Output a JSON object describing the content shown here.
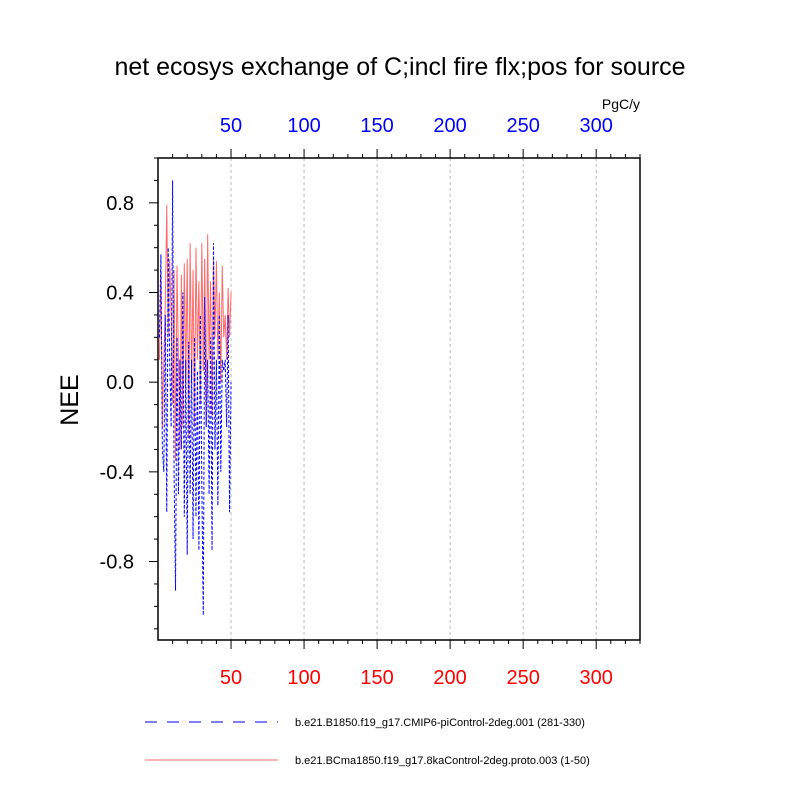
{
  "chart_data": {
    "type": "line",
    "title": "net ecosys exchange of C;incl fire flx;pos for source",
    "units": "PgC/y",
    "ylabel": "NEE",
    "xlabel": "",
    "xlim": [
      0,
      330
    ],
    "ylim": [
      -1.15,
      1.0
    ],
    "x_ticks": [
      50,
      100,
      150,
      200,
      250,
      300
    ],
    "y_ticks": [
      0.8,
      0.4,
      0.0,
      -0.4,
      -0.8
    ],
    "y_tick_labels": [
      "0.8",
      "0.4",
      "0.0",
      "-0.4",
      "-0.8"
    ],
    "grid": "vertical dashed at major x ticks",
    "legend_position": "bottom",
    "series": [
      {
        "name": "b.e21.B1850.f19_g17.CMIP6-piControl-2deg.001 (281-330)",
        "color": "#0000ff",
        "style": "dashed",
        "x": [
          1,
          2,
          3,
          4,
          5,
          6,
          7,
          8,
          9,
          10,
          11,
          12,
          13,
          14,
          15,
          16,
          17,
          18,
          19,
          20,
          21,
          22,
          23,
          24,
          25,
          26,
          27,
          28,
          29,
          30,
          31,
          32,
          33,
          34,
          35,
          36,
          37,
          38,
          39,
          40,
          41,
          42,
          43,
          44,
          45,
          46,
          47,
          48,
          49,
          50
        ],
        "values": [
          0.2,
          0.57,
          -0.3,
          -0.4,
          0.3,
          -0.58,
          0.6,
          0.1,
          -0.2,
          0.9,
          -0.4,
          -0.93,
          0.2,
          -0.5,
          0.1,
          -0.3,
          0.4,
          -0.6,
          0.1,
          -0.77,
          0.18,
          -0.5,
          0.1,
          -0.7,
          0.2,
          -0.6,
          0.05,
          -0.75,
          0.3,
          -0.45,
          -1.04,
          0.38,
          -0.2,
          0.1,
          -0.5,
          0.2,
          -0.75,
          0.62,
          -0.3,
          0.1,
          -0.55,
          0.3,
          -0.4,
          0.1,
          0.05,
          0.1,
          -0.2,
          0.3,
          -0.58,
          0.0
        ]
      },
      {
        "name": "b.e21.BCma1850.f19_g17.8kaControl-2deg.proto.003 (1-50)",
        "color": "#ff6a6a",
        "style": "solid",
        "x": [
          1,
          2,
          3,
          4,
          5,
          6,
          7,
          8,
          9,
          10,
          11,
          12,
          13,
          14,
          15,
          16,
          17,
          18,
          19,
          20,
          21,
          22,
          23,
          24,
          25,
          26,
          27,
          28,
          29,
          30,
          31,
          32,
          33,
          34,
          35,
          36,
          37,
          38,
          39,
          40,
          41,
          42,
          43,
          44,
          45,
          46,
          47,
          48,
          49,
          50
        ],
        "values": [
          0.1,
          0.5,
          -0.2,
          0.1,
          0.35,
          0.79,
          0.2,
          0.55,
          0.3,
          -0.1,
          0.5,
          -0.35,
          0.52,
          0.1,
          -0.3,
          0.48,
          -0.2,
          0.53,
          0.0,
          0.55,
          -0.25,
          0.62,
          0.0,
          0.5,
          -0.2,
          0.6,
          0.1,
          0.45,
          -0.1,
          0.62,
          0.05,
          0.55,
          -0.2,
          0.66,
          0.1,
          0.45,
          -0.15,
          0.55,
          0.2,
          0.54,
          0.1,
          0.4,
          0.0,
          0.52,
          0.2,
          0.3,
          0.1,
          0.42,
          0.2,
          0.4
        ]
      }
    ]
  }
}
